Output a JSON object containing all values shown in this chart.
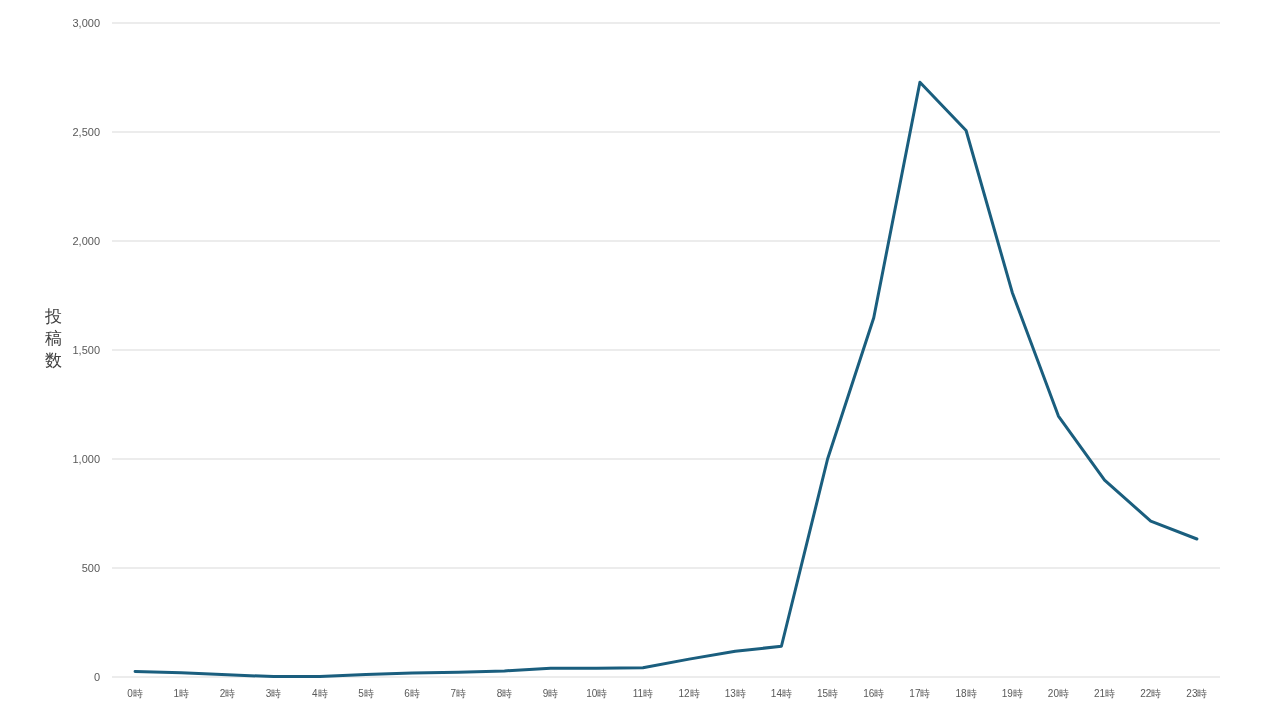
{
  "chart_data": {
    "type": "line",
    "ylabel": "投稿数",
    "categories": [
      "0時",
      "1時",
      "2時",
      "3時",
      "4時",
      "5時",
      "6時",
      "7時",
      "8時",
      "9時",
      "10時",
      "11時",
      "12時",
      "13時",
      "14時",
      "15時",
      "16時",
      "17時",
      "18時",
      "19時",
      "20時",
      "21時",
      "22時",
      "23時"
    ],
    "series": [
      {
        "color": "#1a5e7e",
        "values": [
          25,
          20,
          10,
          2,
          2,
          12,
          18,
          22,
          28,
          40,
          40,
          42,
          82,
          118,
          141,
          1000,
          1648,
          2728,
          2507,
          1764,
          1197,
          903,
          715,
          633
        ]
      }
    ],
    "ylim": [
      0,
      3000
    ],
    "yticks": [
      0,
      500,
      {
        "value": 1000,
        "label": "1,000"
      },
      {
        "value": 1500,
        "label": "1,500"
      },
      {
        "value": 2000,
        "label": "2,000"
      },
      {
        "value": 2500,
        "label": "2,500"
      },
      {
        "value": 3000,
        "label": "3,000"
      }
    ],
    "grid": "y",
    "line_style": "solid"
  }
}
